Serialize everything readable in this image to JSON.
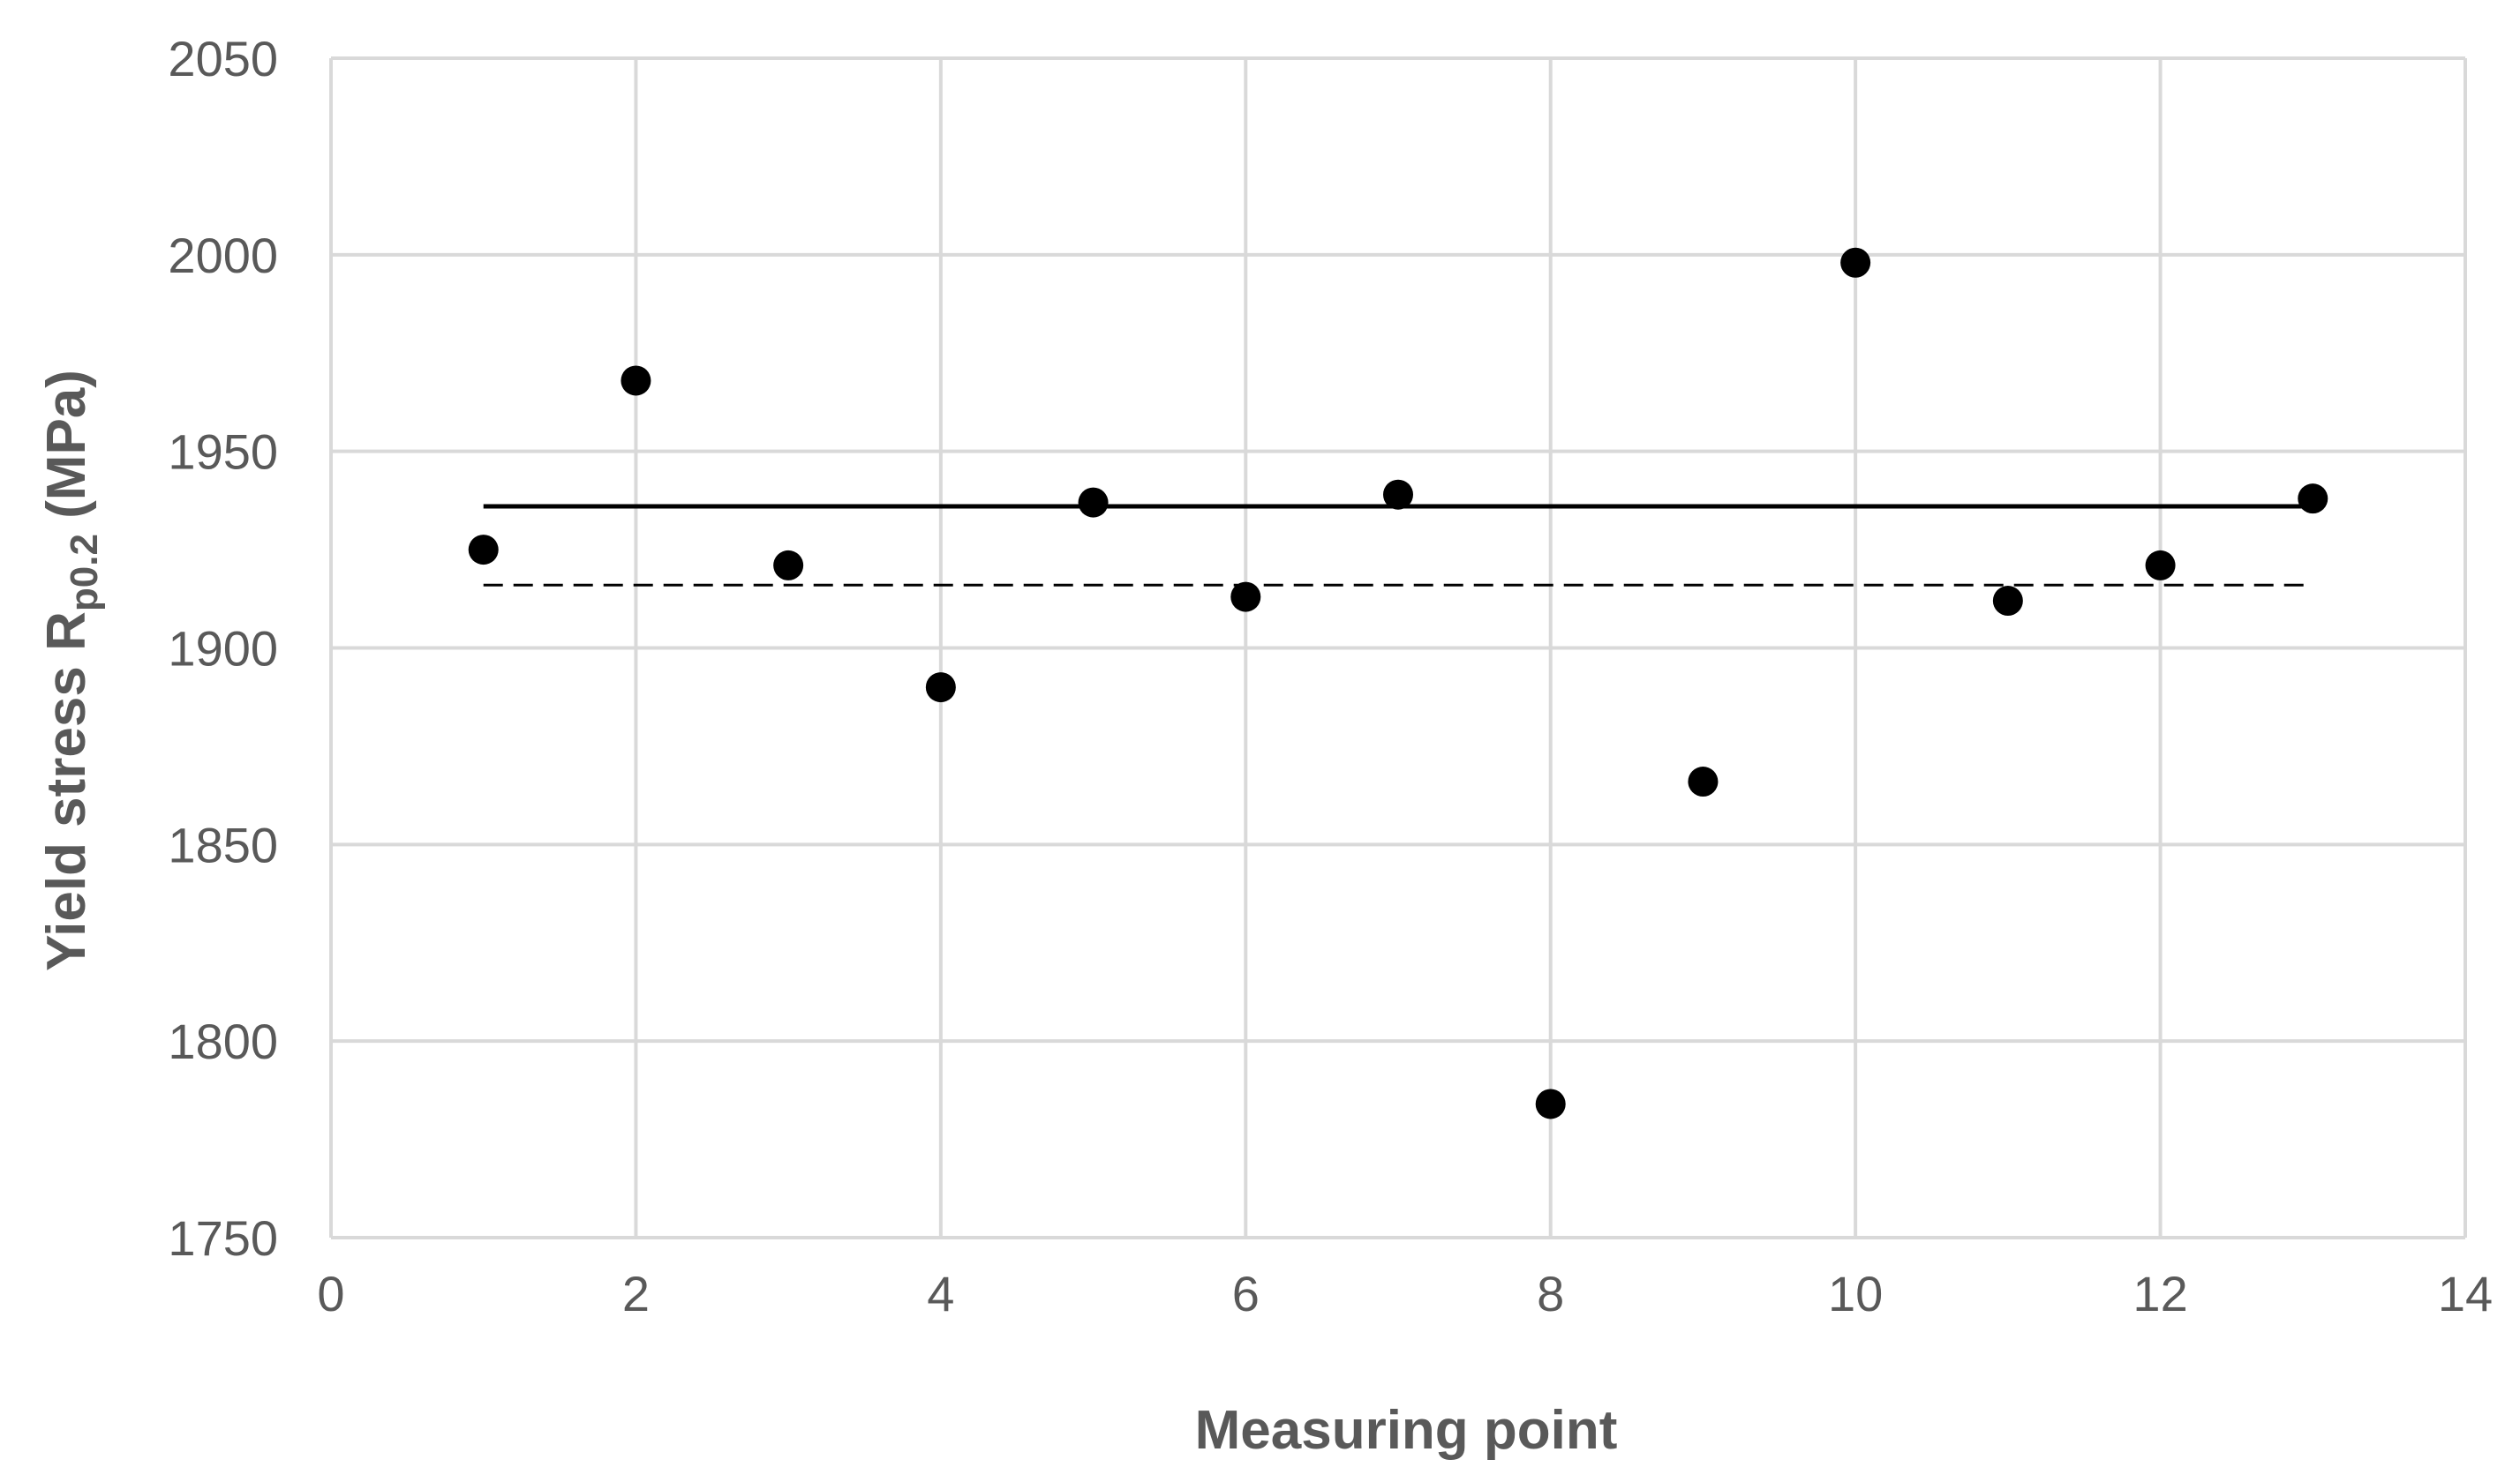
{
  "chart_data": {
    "type": "scatter",
    "title": "",
    "xlabel": "Measuring point",
    "ylabel": {
      "prefix": "Yield stress R",
      "subscript": "p0.2",
      "suffix": " (MPa)"
    },
    "xlim": [
      0,
      14
    ],
    "ylim": [
      1750,
      2050
    ],
    "xticks": [
      0,
      2,
      4,
      6,
      8,
      10,
      12,
      14
    ],
    "yticks": [
      1750,
      1800,
      1850,
      1900,
      1950,
      2000,
      2050
    ],
    "grid": true,
    "legend": "none",
    "series": [
      {
        "type": "scatter",
        "color": "#000000",
        "marker": "circle",
        "x": [
          1,
          2,
          3,
          4,
          5,
          6,
          7,
          8,
          9,
          10,
          11,
          12,
          13
        ],
        "y": [
          1925,
          1968,
          1921,
          1890,
          1937,
          1913,
          1939,
          1784,
          1866,
          1998,
          1912,
          1921,
          1938
        ]
      }
    ],
    "reference_lines": [
      {
        "style": "solid",
        "color": "#000000",
        "y": 1936,
        "x": [
          1,
          13
        ]
      },
      {
        "style": "dashed",
        "color": "#000000",
        "y": 1916,
        "x": [
          1,
          13
        ]
      }
    ]
  },
  "colors": {
    "grid": "#d9d9d9",
    "text": "#595959",
    "marker": "#000000",
    "background": "#ffffff"
  }
}
